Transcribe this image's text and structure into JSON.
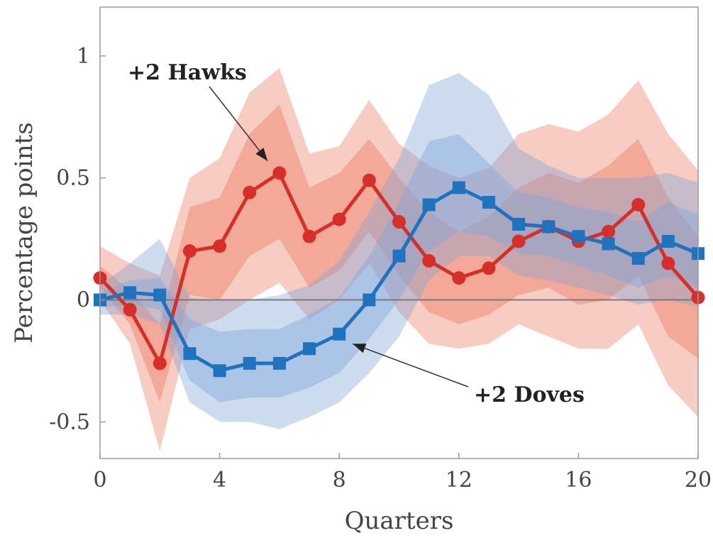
{
  "chart_data": {
    "type": "line",
    "xlabel": "Quarters",
    "ylabel": "Percentage points",
    "xlim": [
      0,
      20
    ],
    "ylim": [
      -0.65,
      1.2
    ],
    "xticks": [
      0,
      4,
      8,
      12,
      16,
      20
    ],
    "xtick_labels": [
      "0",
      "4",
      "8",
      "12",
      "16",
      "20"
    ],
    "yticks": [
      -0.5,
      0,
      0.5,
      1
    ],
    "ytick_labels": [
      "-0.5",
      "0",
      "0.5",
      "1"
    ],
    "grid": false,
    "zero_line": true,
    "x": [
      0,
      1,
      2,
      3,
      4,
      5,
      6,
      7,
      8,
      9,
      10,
      11,
      12,
      13,
      14,
      15,
      16,
      17,
      18,
      19,
      20
    ],
    "series": [
      {
        "name": "+2 Hawks",
        "color": "#d62f2a",
        "band_color": "#eb7a5e",
        "marker": "circle",
        "values": [
          0.09,
          -0.04,
          -0.26,
          0.2,
          0.22,
          0.44,
          0.52,
          0.26,
          0.33,
          0.49,
          0.32,
          0.16,
          0.09,
          0.13,
          0.24,
          0.3,
          0.24,
          0.28,
          0.39,
          0.15,
          0.01
        ],
        "inner_band": {
          "lower": [
            0.05,
            -0.1,
            -0.42,
            0.02,
            0.0,
            0.18,
            0.25,
            0.05,
            0.12,
            0.28,
            0.1,
            -0.05,
            -0.1,
            -0.06,
            0.02,
            0.05,
            -0.02,
            0.0,
            0.1,
            -0.15,
            -0.24
          ],
          "upper": [
            0.14,
            0.04,
            -0.1,
            0.38,
            0.42,
            0.68,
            0.8,
            0.46,
            0.52,
            0.66,
            0.5,
            0.36,
            0.28,
            0.34,
            0.46,
            0.52,
            0.48,
            0.55,
            0.66,
            0.42,
            0.26
          ]
        },
        "outer_band": {
          "lower": [
            0.0,
            -0.18,
            -0.62,
            -0.12,
            -0.08,
            0.0,
            0.07,
            -0.08,
            0.0,
            0.15,
            -0.05,
            -0.18,
            -0.2,
            -0.18,
            -0.1,
            -0.15,
            -0.2,
            -0.2,
            -0.1,
            -0.35,
            -0.48
          ],
          "upper": [
            0.22,
            0.15,
            0.1,
            0.5,
            0.58,
            0.85,
            0.95,
            0.6,
            0.63,
            0.82,
            0.64,
            0.55,
            0.5,
            0.54,
            0.68,
            0.72,
            0.69,
            0.76,
            0.9,
            0.68,
            0.53
          ]
        }
      },
      {
        "name": "+2 Doves",
        "color": "#1f72bd",
        "band_color": "#7fa4d8",
        "marker": "square",
        "values": [
          0.0,
          0.03,
          0.02,
          -0.22,
          -0.29,
          -0.26,
          -0.26,
          -0.2,
          -0.14,
          0.0,
          0.18,
          0.39,
          0.46,
          0.4,
          0.31,
          0.3,
          0.26,
          0.23,
          0.17,
          0.24,
          0.19
        ],
        "inner_band": {
          "lower": [
            -0.03,
            -0.02,
            -0.04,
            -0.33,
            -0.42,
            -0.4,
            -0.4,
            -0.36,
            -0.3,
            -0.16,
            0.0,
            0.2,
            0.28,
            0.26,
            0.19,
            0.18,
            0.14,
            0.1,
            0.05,
            0.1,
            0.05
          ],
          "upper": [
            0.03,
            0.08,
            0.09,
            -0.08,
            -0.13,
            -0.12,
            -0.12,
            -0.06,
            0.01,
            0.18,
            0.4,
            0.65,
            0.68,
            0.56,
            0.44,
            0.42,
            0.38,
            0.36,
            0.32,
            0.4,
            0.35
          ]
        },
        "outer_band": {
          "lower": [
            -0.06,
            -0.06,
            -0.1,
            -0.42,
            -0.5,
            -0.5,
            -0.53,
            -0.48,
            -0.42,
            -0.3,
            -0.15,
            0.08,
            0.18,
            0.18,
            0.1,
            0.08,
            0.05,
            0.02,
            -0.02,
            0.0,
            -0.03
          ],
          "upper": [
            0.06,
            0.15,
            0.25,
            0.01,
            0.0,
            0.0,
            0.02,
            0.06,
            0.16,
            0.36,
            0.58,
            0.88,
            0.93,
            0.84,
            0.62,
            0.55,
            0.5,
            0.5,
            0.5,
            0.52,
            0.48
          ]
        }
      }
    ],
    "annotations": [
      {
        "text": "+2 Hawks",
        "series": "+2 Hawks",
        "target": [
          6,
          0.52
        ],
        "placement": "upper-left"
      },
      {
        "text": "+2 Doves",
        "series": "+2 Doves",
        "target": [
          8,
          -0.16
        ],
        "placement": "lower-right"
      }
    ]
  }
}
